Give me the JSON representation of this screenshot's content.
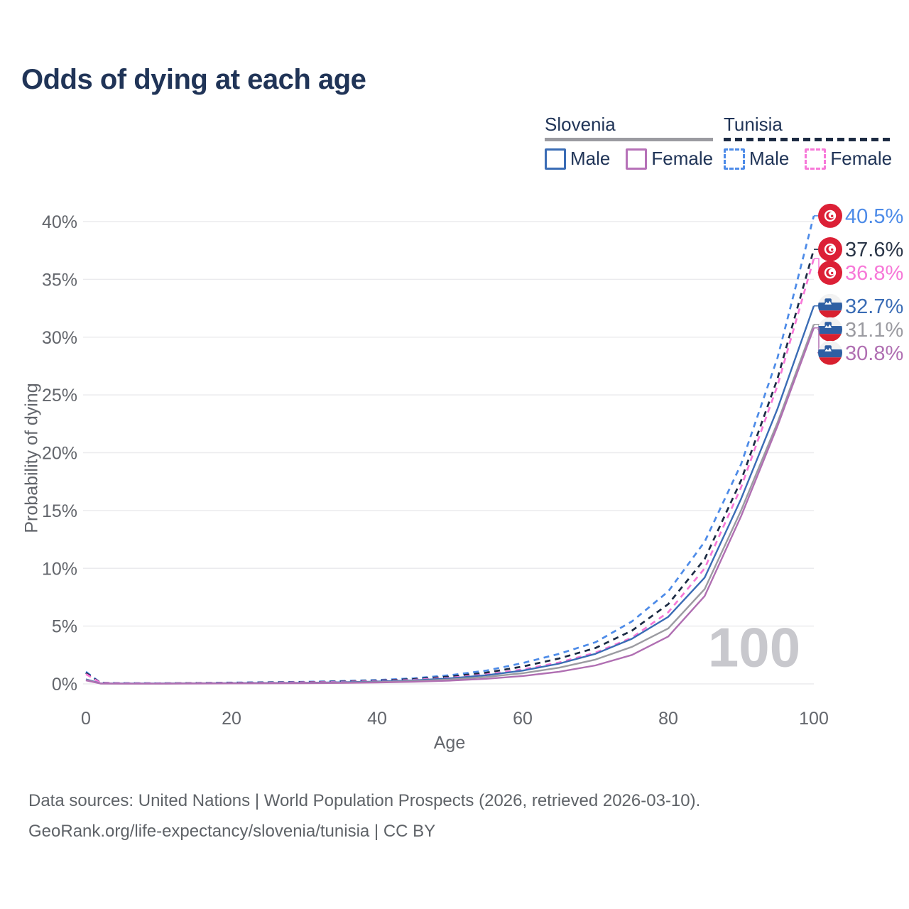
{
  "title": "Odds of dying at each age",
  "legend": {
    "slovenia": {
      "name": "Slovenia",
      "male_label": "Male",
      "female_label": "Female"
    },
    "tunisia": {
      "name": "Tunisia",
      "male_label": "Male",
      "female_label": "Female"
    }
  },
  "watermark": "100",
  "footer": {
    "line1": "Data sources: United Nations | World Population Prospects (2026, retrieved 2026-03-10).",
    "line2": "GeoRank.org/life-expectancy/slovenia/tunisia | CC BY"
  },
  "colors": {
    "title_text": "#203457",
    "axis_text": "#63666c",
    "gridline": "#ebebee",
    "slovenia_male": "#3a6cb5",
    "slovenia_female": "#b06fb2",
    "slovenia_both": "#9b9ba1",
    "tunisia_male": "#4d8be8",
    "tunisia_female": "#f778d8",
    "tunisia_both": "#1c2b43"
  },
  "chart_data": {
    "type": "line",
    "title": "Odds of dying at each age",
    "xlabel": "Age",
    "ylabel": "Probability of dying",
    "xlim": [
      0,
      100
    ],
    "ylim": [
      0,
      40
    ],
    "x_ticks": [
      0,
      20,
      40,
      60,
      80,
      100
    ],
    "y_ticks": [
      "0%",
      "5%",
      "10%",
      "15%",
      "20%",
      "25%",
      "30%",
      "35%",
      "40%"
    ],
    "grid": true,
    "legend_position": "top-right",
    "x": [
      0,
      2,
      5,
      10,
      15,
      20,
      25,
      30,
      35,
      40,
      45,
      50,
      55,
      60,
      65,
      70,
      75,
      80,
      85,
      90,
      95,
      100
    ],
    "series": [
      {
        "id": "tunisia-male",
        "name": "Tunisia — Male",
        "flag": "tunisia",
        "dash": true,
        "color": "#4d8be8",
        "label_color": "#4d8be8",
        "end_label": "40.5%",
        "values": [
          1.05,
          0.1,
          0.06,
          0.05,
          0.08,
          0.11,
          0.14,
          0.18,
          0.24,
          0.33,
          0.48,
          0.75,
          1.15,
          1.8,
          2.6,
          3.6,
          5.4,
          8.0,
          12.3,
          19.0,
          28.2,
          40.5
        ]
      },
      {
        "id": "tunisia-both",
        "name": "Tunisia — Both sexes",
        "flag": "tunisia",
        "dash": true,
        "color": "#1c2b43",
        "label_color": "#2b3648",
        "end_label": "37.6%",
        "values": [
          0.95,
          0.09,
          0.05,
          0.04,
          0.07,
          0.09,
          0.12,
          0.15,
          0.2,
          0.28,
          0.41,
          0.63,
          0.97,
          1.5,
          2.2,
          3.1,
          4.6,
          6.9,
          10.8,
          17.6,
          26.4,
          37.6
        ]
      },
      {
        "id": "tunisia-female",
        "name": "Tunisia — Female",
        "flag": "tunisia",
        "dash": true,
        "color": "#f778d8",
        "label_color": "#f778d8",
        "end_label": "36.8%",
        "values": [
          0.85,
          0.08,
          0.05,
          0.04,
          0.06,
          0.08,
          0.1,
          0.13,
          0.17,
          0.24,
          0.35,
          0.53,
          0.82,
          1.25,
          1.85,
          2.7,
          4.0,
          6.2,
          10.0,
          17.0,
          25.8,
          36.8
        ]
      },
      {
        "id": "slovenia-male",
        "name": "Slovenia — Male",
        "flag": "slovenia",
        "dash": false,
        "color": "#3a6cb5",
        "label_color": "#3a6cb5",
        "end_label": "32.7%",
        "values": [
          0.4,
          0.04,
          0.03,
          0.03,
          0.05,
          0.07,
          0.08,
          0.1,
          0.14,
          0.2,
          0.3,
          0.48,
          0.75,
          1.15,
          1.75,
          2.6,
          3.9,
          5.8,
          9.2,
          16.0,
          23.8,
          32.7
        ]
      },
      {
        "id": "slovenia-both",
        "name": "Slovenia — Both sexes",
        "flag": "slovenia",
        "dash": false,
        "color": "#9b9ba1",
        "label_color": "#9b9ba1",
        "end_label": "31.1%",
        "values": [
          0.35,
          0.03,
          0.02,
          0.02,
          0.04,
          0.05,
          0.06,
          0.08,
          0.11,
          0.16,
          0.24,
          0.38,
          0.6,
          0.92,
          1.4,
          2.1,
          3.2,
          4.8,
          8.2,
          15.0,
          22.6,
          31.1
        ]
      },
      {
        "id": "slovenia-female",
        "name": "Slovenia — Female",
        "flag": "slovenia",
        "dash": false,
        "color": "#b06fb2",
        "label_color": "#b06fb2",
        "end_label": "30.8%",
        "values": [
          0.3,
          0.03,
          0.02,
          0.02,
          0.03,
          0.04,
          0.05,
          0.06,
          0.08,
          0.12,
          0.18,
          0.28,
          0.44,
          0.68,
          1.05,
          1.6,
          2.5,
          4.1,
          7.6,
          14.5,
          22.3,
          30.8
        ]
      }
    ]
  }
}
